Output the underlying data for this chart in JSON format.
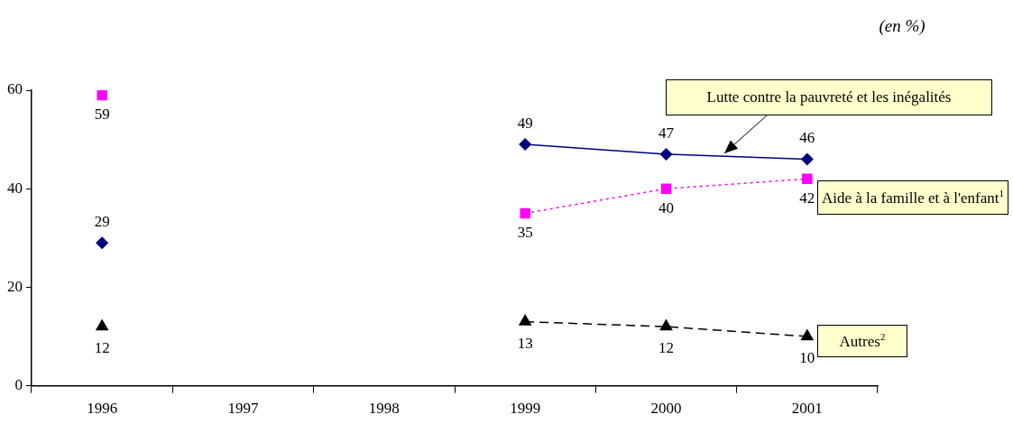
{
  "chart_data": {
    "type": "line",
    "subtitle": "(en %)",
    "categories": [
      "1996",
      "1997",
      "1998",
      "1999",
      "2000",
      "2001"
    ],
    "series": [
      {
        "name": "Lutte contre la pauvreté et les inégalités",
        "color": "#000080",
        "marker": "diamond",
        "line_style": "solid",
        "values": [
          29,
          null,
          null,
          49,
          47,
          46
        ]
      },
      {
        "name": "Aide à la famille et à l'enfant$^{1}$",
        "color": "#ff00ff",
        "marker": "square",
        "line_style": "dotted",
        "values": [
          59,
          null,
          null,
          35,
          40,
          42
        ]
      },
      {
        "name": "Autres$^{2}$",
        "color": "#000000",
        "marker": "triangle",
        "line_style": "dashed",
        "values": [
          12,
          null,
          null,
          13,
          12,
          10
        ]
      }
    ],
    "ylim": [
      0,
      60
    ],
    "yticks": [
      0,
      20,
      40,
      60
    ],
    "grid": false,
    "legend": false,
    "data_labels": true
  }
}
